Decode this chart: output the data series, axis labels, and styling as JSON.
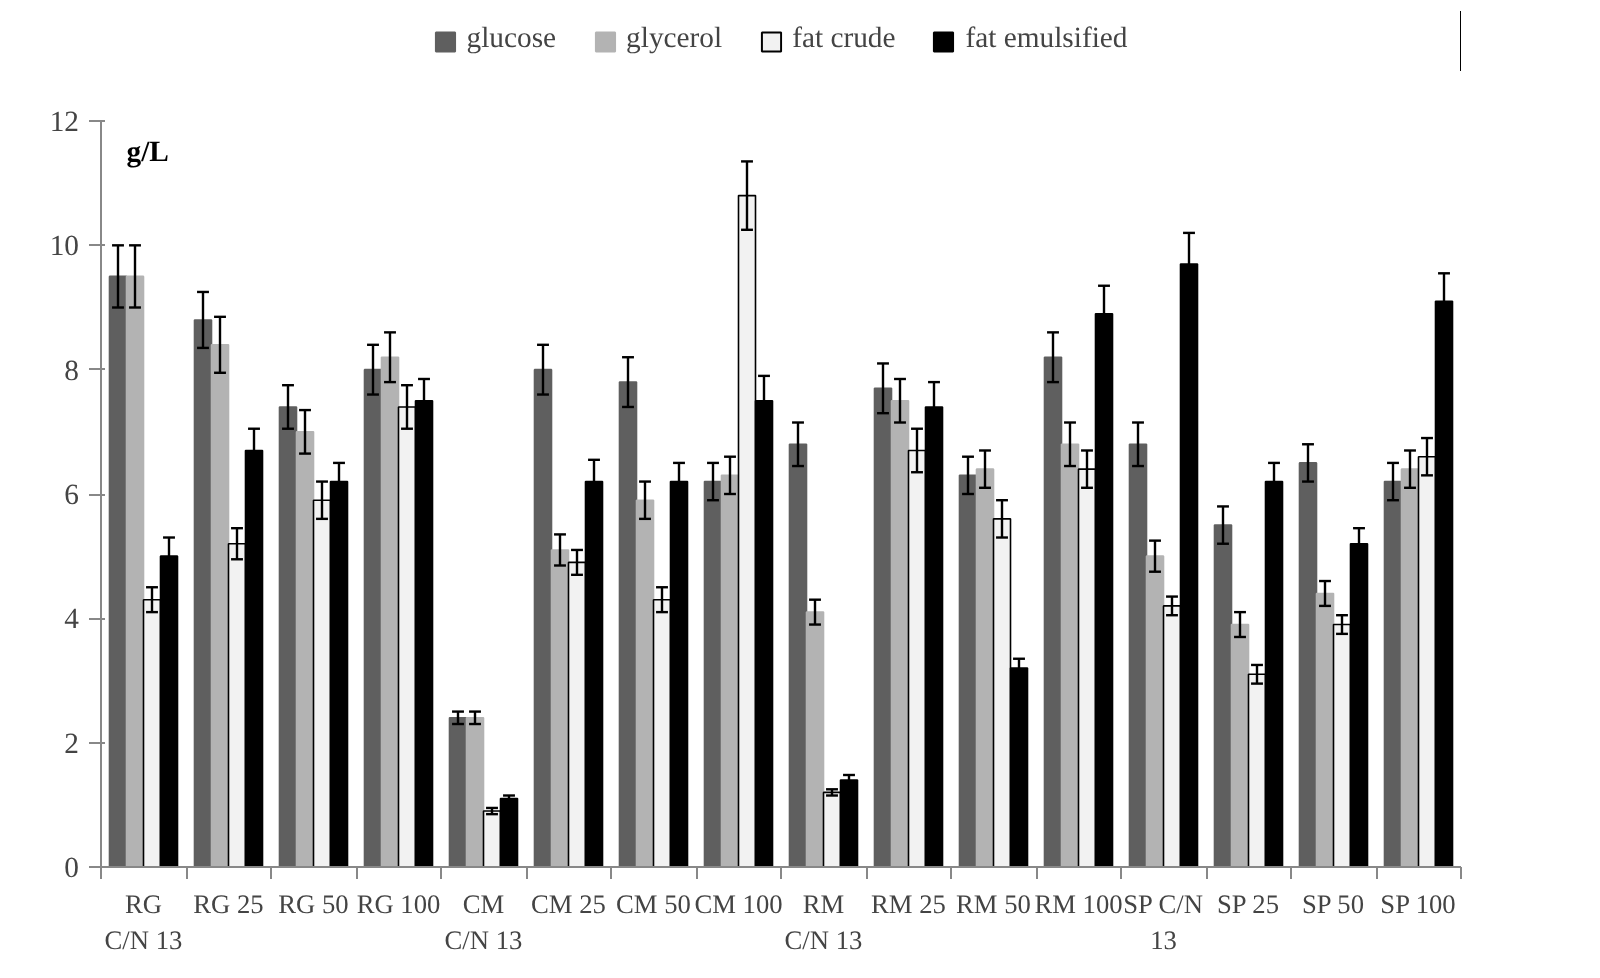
{
  "chart_data": {
    "type": "bar",
    "ylabel": "g/L",
    "categories": [
      "RG\nC/N 13",
      "RG 25",
      "RG 50",
      "RG 100",
      "CM\nC/N 13",
      "CM 25",
      "CM 50",
      "CM 100",
      "RM\nC/N 13",
      "RM 25",
      "RM 50",
      "RM 100",
      "SP C/N\n13",
      "SP 25",
      "SP 50",
      "SP 100"
    ],
    "series": [
      {
        "name": "glucose",
        "color": "#5f5f5f",
        "values": [
          9.5,
          8.8,
          7.4,
          8.0,
          2.4,
          8.0,
          7.8,
          6.2,
          6.8,
          7.7,
          6.3,
          8.2,
          6.8,
          5.5,
          6.5,
          6.2
        ],
        "errors": [
          0.5,
          0.45,
          0.35,
          0.4,
          0.1,
          0.4,
          0.4,
          0.3,
          0.35,
          0.4,
          0.3,
          0.4,
          0.35,
          0.3,
          0.3,
          0.3
        ]
      },
      {
        "name": "glycerol",
        "color": "#b3b3b3",
        "values": [
          9.5,
          8.4,
          7.0,
          8.2,
          2.4,
          5.1,
          5.9,
          6.3,
          4.1,
          7.5,
          6.4,
          6.8,
          5.0,
          3.9,
          4.4,
          6.4
        ],
        "errors": [
          0.5,
          0.45,
          0.35,
          0.4,
          0.1,
          0.25,
          0.3,
          0.3,
          0.2,
          0.35,
          0.3,
          0.35,
          0.25,
          0.2,
          0.2,
          0.3
        ]
      },
      {
        "name": "fat crude",
        "color": "#f2f2f2",
        "values": [
          4.3,
          5.2,
          5.9,
          7.4,
          0.9,
          4.9,
          4.3,
          10.8,
          1.2,
          6.7,
          5.6,
          6.4,
          4.2,
          3.1,
          3.9,
          6.6
        ],
        "errors": [
          0.2,
          0.25,
          0.3,
          0.35,
          0.05,
          0.2,
          0.2,
          0.55,
          0.05,
          0.35,
          0.3,
          0.3,
          0.15,
          0.15,
          0.15,
          0.3
        ]
      },
      {
        "name": "fat emulsified",
        "color": "#000000",
        "values": [
          5.0,
          6.7,
          6.2,
          7.5,
          1.1,
          6.2,
          6.2,
          7.5,
          1.4,
          7.4,
          3.2,
          8.9,
          9.7,
          6.2,
          5.2,
          9.1
        ],
        "errors": [
          0.3,
          0.35,
          0.3,
          0.35,
          0.05,
          0.35,
          0.3,
          0.4,
          0.08,
          0.4,
          0.15,
          0.45,
          0.5,
          0.3,
          0.25,
          0.45
        ]
      }
    ],
    "ylim": [
      0,
      12
    ],
    "yticks": [
      0,
      2,
      4,
      6,
      8,
      10,
      12
    ],
    "grid": false,
    "legend": "top"
  }
}
